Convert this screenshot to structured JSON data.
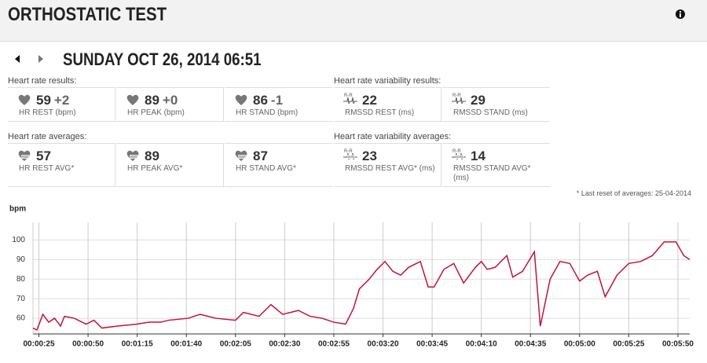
{
  "header": {
    "title": "ORTHOSTATIC TEST",
    "date": "SUNDAY OCT 26, 2014 06:51"
  },
  "sections": [
    {
      "title": "Heart rate results:",
      "items": [
        {
          "value": 59,
          "delta": "+2",
          "label": "HR REST (bpm)"
        },
        {
          "value": 89,
          "delta": "+0",
          "label": "HR PEAK (bpm)"
        },
        {
          "value": 86,
          "delta": "-1",
          "label": "HR STAND (bpm)"
        }
      ]
    },
    {
      "title": "Heart rate variability results:",
      "items": [
        {
          "value": 22,
          "label": "RMSSD REST (ms)"
        },
        {
          "value": 29,
          "label": "RMSSD STAND (ms)"
        }
      ]
    },
    {
      "title": "Heart rate averages:",
      "items": [
        {
          "value": 57,
          "label": "HR REST AVG*"
        },
        {
          "value": 89,
          "label": "HR PEAK AVG*"
        },
        {
          "value": 87,
          "label": "HR STAND AVG*"
        }
      ]
    },
    {
      "title": "Heart rate variability averages:",
      "items": [
        {
          "value": 23,
          "label": "RMSSD REST AVG* (ms)"
        },
        {
          "value": 14,
          "label": "RMSSD STAND AVG* (ms)"
        }
      ]
    }
  ],
  "footnote": "* Last reset of averages: 25-04-2014",
  "chart_data": {
    "type": "line",
    "y_label": "bpm",
    "x": [
      22,
      24,
      27,
      30,
      33,
      36,
      38,
      43,
      49,
      53,
      57,
      65,
      75,
      81,
      87,
      91,
      101,
      107,
      115,
      125,
      129,
      137,
      143,
      149,
      157,
      163,
      169,
      175,
      181,
      185,
      188,
      193,
      197,
      201,
      205,
      209,
      213,
      219,
      223,
      226,
      231,
      236,
      241,
      247,
      250,
      253,
      257,
      263,
      266,
      271,
      277,
      280,
      285,
      290,
      295,
      300,
      304,
      309,
      313,
      319,
      325,
      331,
      337,
      343,
      349,
      353,
      356
    ],
    "series": [
      {
        "name": "bpm",
        "color": "#c0143c",
        "values": [
          55,
          54,
          62,
          58,
          60,
          56,
          61,
          60,
          57,
          59,
          55,
          56,
          57,
          58,
          58,
          59,
          60,
          62,
          60,
          59,
          63,
          61,
          67,
          62,
          64,
          61,
          60,
          58,
          57,
          65,
          75,
          80,
          85,
          89,
          84,
          82,
          86,
          89,
          76,
          76,
          85,
          88,
          78,
          86,
          89,
          85,
          86,
          92,
          81,
          84,
          94,
          56,
          80,
          89,
          88,
          79,
          82,
          84,
          71,
          82,
          88,
          89,
          92,
          99,
          99,
          92,
          90
        ]
      }
    ],
    "xlim": [
      22,
      356
    ],
    "ylim": [
      52,
      109
    ],
    "xticks": [
      {
        "value": 25,
        "label": "00:00:25"
      },
      {
        "value": 50,
        "label": "00:00:50"
      },
      {
        "value": 75,
        "label": "00:01:15"
      },
      {
        "value": 100,
        "label": "00:01:40"
      },
      {
        "value": 125,
        "label": "00:02:05"
      },
      {
        "value": 150,
        "label": "00:02:30"
      },
      {
        "value": 175,
        "label": "00:02:55"
      },
      {
        "value": 200,
        "label": "00:03:20"
      },
      {
        "value": 225,
        "label": "00:03:45"
      },
      {
        "value": 250,
        "label": "00:04:10"
      },
      {
        "value": 275,
        "label": "00:04:35"
      },
      {
        "value": 300,
        "label": "00:05:00"
      },
      {
        "value": 325,
        "label": "00:05:25"
      },
      {
        "value": 350,
        "label": "00:05:50"
      }
    ],
    "yticks": [
      60,
      70,
      80,
      90,
      100
    ],
    "grid": true
  }
}
